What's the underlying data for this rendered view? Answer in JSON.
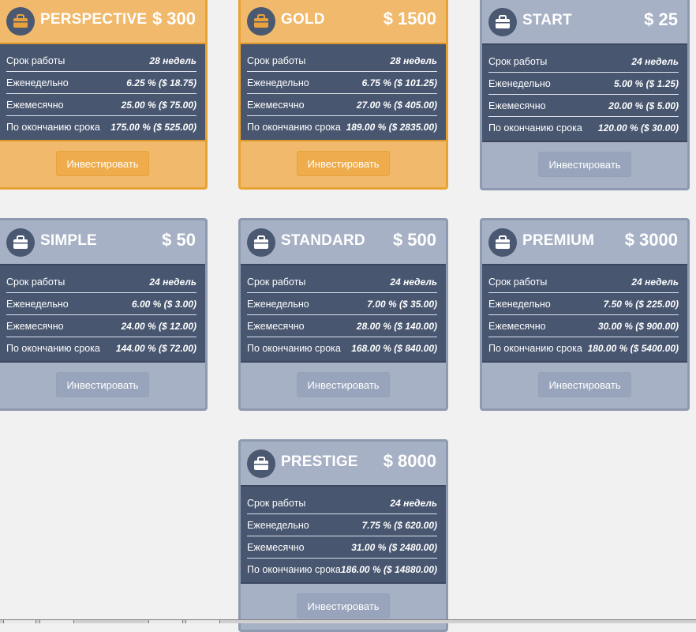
{
  "labels": {
    "term": "Срок работы",
    "weekly": "Еженедельно",
    "monthly": "Ежемесячно",
    "end": "По окончанию срока",
    "invest": "Инвестировать"
  },
  "colors": {
    "gold": "#f0b96b",
    "gold_border": "#e7a232",
    "default": "#a7b1c5",
    "body": "#485670"
  },
  "plans": [
    {
      "name": "PERSPECTIVE",
      "price": "$ 300",
      "term": "28 недель",
      "weekly": "6.25 % ($ 18.75)",
      "monthly": "25.00 % ($ 75.00)",
      "end": "175.00 % ($ 525.00)",
      "highlight": true
    },
    {
      "name": "GOLD",
      "price": "$ 1500",
      "term": "28 недель",
      "weekly": "6.75 % ($ 101.25)",
      "monthly": "27.00 % ($ 405.00)",
      "end": "189.00 % ($ 2835.00)",
      "highlight": true
    },
    {
      "name": "START",
      "price": "$ 25",
      "term": "24 недель",
      "weekly": "5.00 % ($ 1.25)",
      "monthly": "20.00 % ($ 5.00)",
      "end": "120.00 % ($ 30.00)",
      "highlight": false
    },
    {
      "name": "SIMPLE",
      "price": "$ 50",
      "term": "24 недель",
      "weekly": "6.00 % ($ 3.00)",
      "monthly": "24.00 % ($ 12.00)",
      "end": "144.00 % ($ 72.00)",
      "highlight": false
    },
    {
      "name": "STANDARD",
      "price": "$ 500",
      "term": "24 недель",
      "weekly": "7.00 % ($ 35.00)",
      "monthly": "28.00 % ($ 140.00)",
      "end": "168.00 % ($ 840.00)",
      "highlight": false
    },
    {
      "name": "PREMIUM",
      "price": "$ 3000",
      "term": "24 недель",
      "weekly": "7.50 % ($ 225.00)",
      "monthly": "30.00 % ($ 900.00)",
      "end": "180.00 % ($ 5400.00)",
      "highlight": false
    },
    {
      "name": "PRESTIGE",
      "price": "$ 8000",
      "term": "24 недель",
      "weekly": "7.75 % ($ 620.00)",
      "monthly": "31.00 % ($ 2480.00)",
      "end": "186.00 % ($ 14880.00)",
      "highlight": false
    }
  ],
  "icon": "briefcase-icon"
}
